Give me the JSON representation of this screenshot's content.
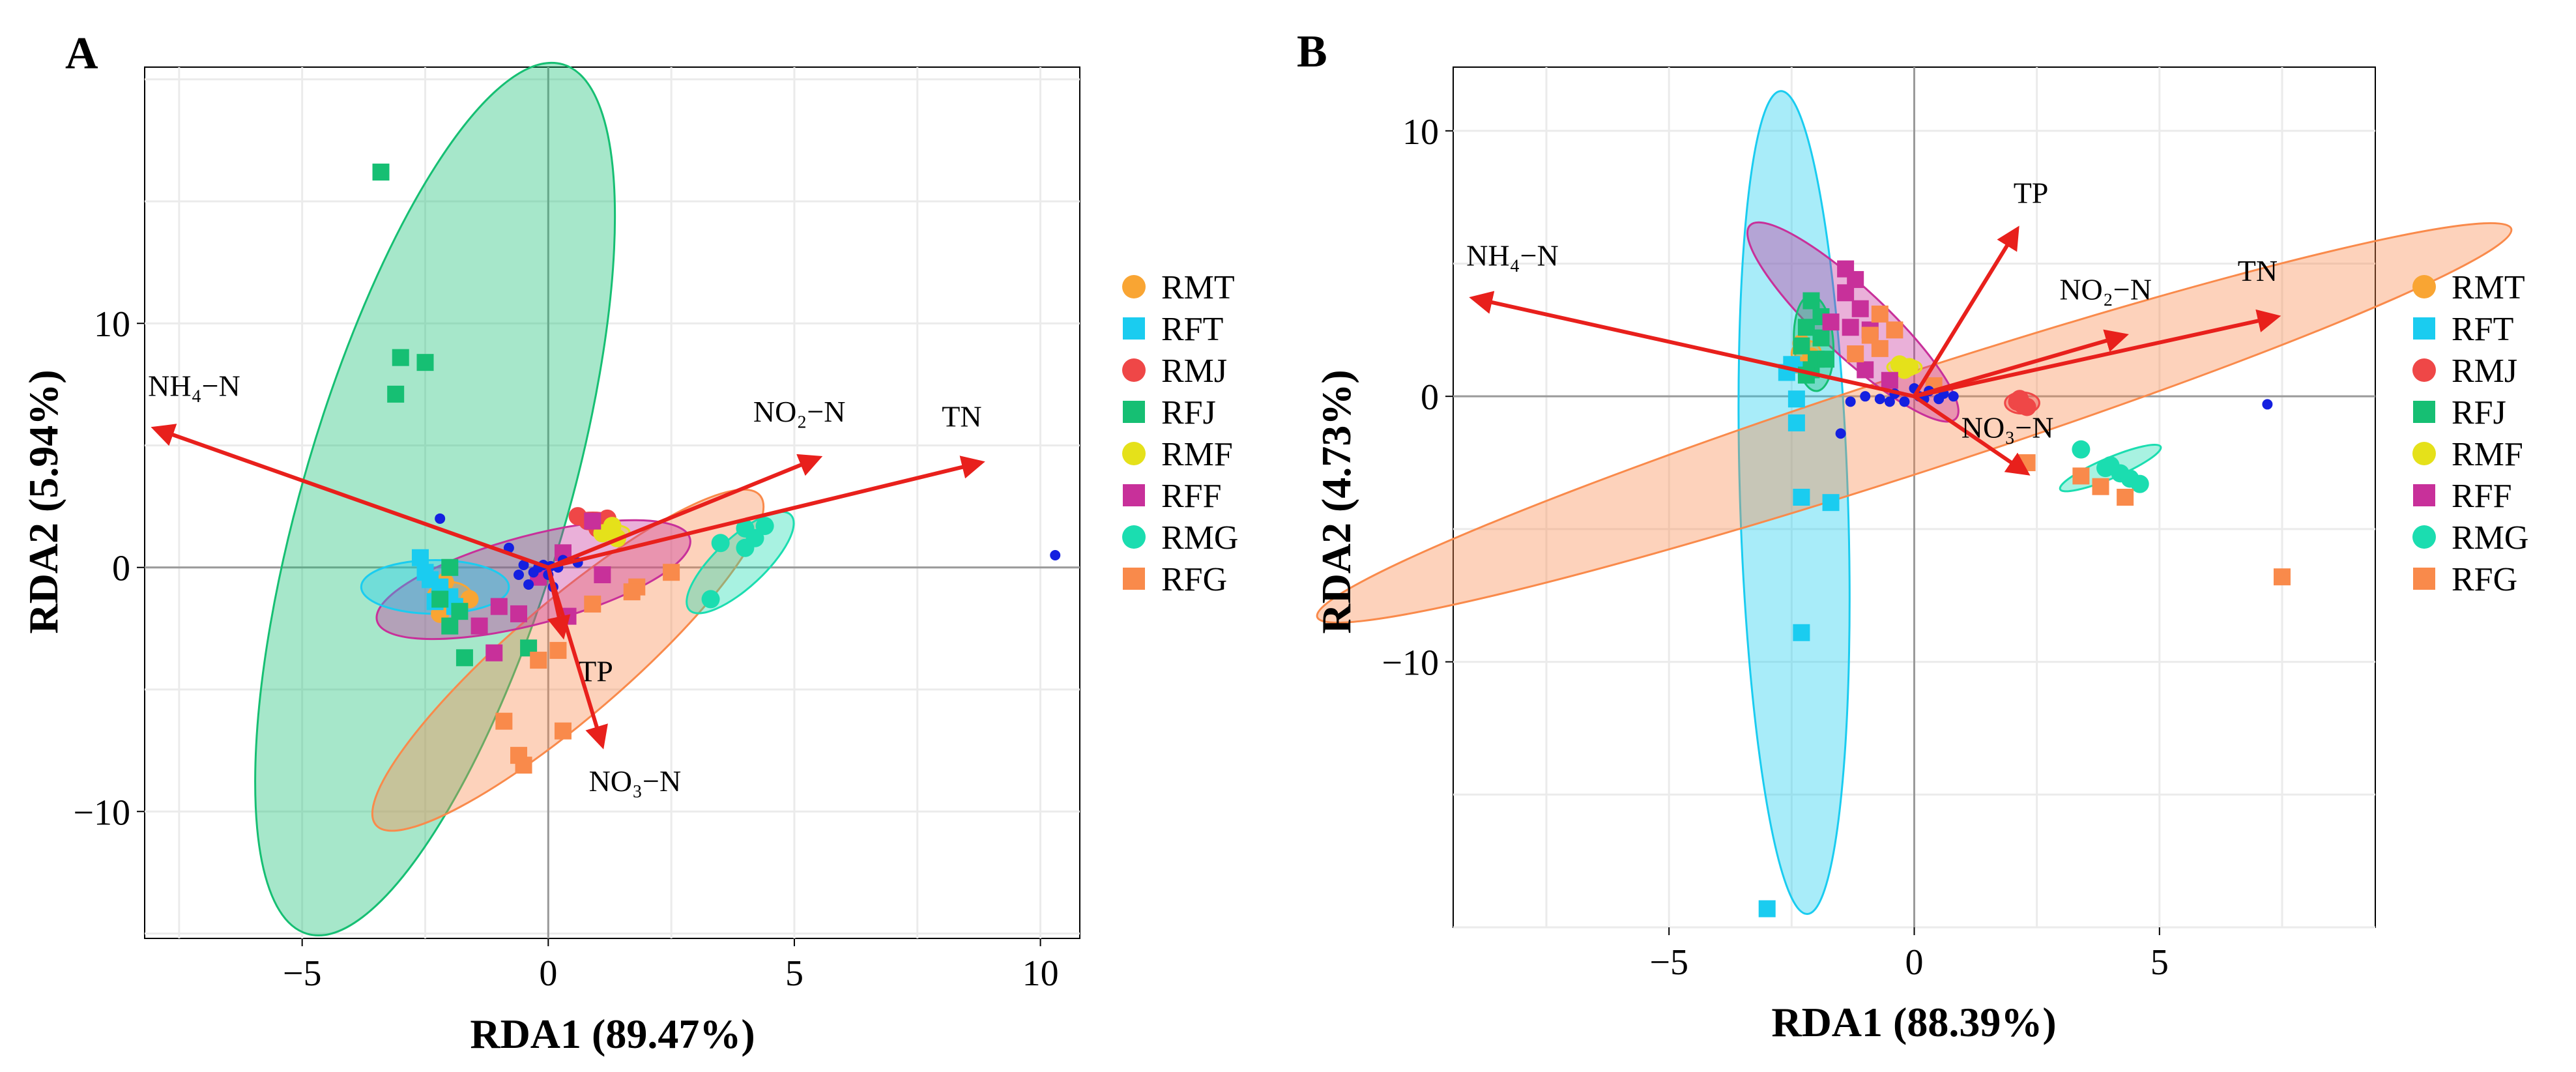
{
  "chart_data": [
    {
      "type": "scatter",
      "panel_label": "A",
      "xlabel": "RDA1 (89.47%)",
      "ylabel": "RDA2 (5.94%)",
      "xlim": [
        -8.2,
        10.8
      ],
      "ylim": [
        -15.2,
        20.5
      ],
      "xticks": [
        -5,
        0,
        5,
        10
      ],
      "yticks": [
        -10,
        0,
        10
      ],
      "xtick_labels": [
        "−5",
        "0",
        "5",
        "10"
      ],
      "ytick_labels": [
        "−10",
        "0",
        "10"
      ],
      "grid": true,
      "legend_position": "right",
      "groups": [
        {
          "name": "RMT",
          "color": "#F9A533",
          "shape": "circle",
          "points": [
            [
              -2.1,
              -0.6
            ],
            [
              -1.6,
              -1.3
            ],
            [
              -2.2,
              -1.9
            ]
          ]
        },
        {
          "name": "RFT",
          "color": "#1ACCF0",
          "shape": "square",
          "points": [
            [
              -2.6,
              0.4
            ],
            [
              -2.4,
              -0.5
            ],
            [
              -2.2,
              -0.8
            ],
            [
              -2.0,
              -1.2
            ],
            [
              -2.3,
              -1.4
            ],
            [
              -1.9,
              -1.6
            ],
            [
              -2.5,
              -0.2
            ]
          ]
        },
        {
          "name": "RMJ",
          "color": "#EF4747",
          "shape": "circle",
          "points": [
            [
              0.6,
              2.1
            ],
            [
              0.8,
              1.9
            ],
            [
              1.0,
              1.6
            ],
            [
              1.2,
              2.0
            ]
          ]
        },
        {
          "name": "RFJ",
          "color": "#16BF73",
          "shape": "square",
          "points": [
            [
              -3.4,
              16.2
            ],
            [
              -3.0,
              8.6
            ],
            [
              -2.5,
              8.4
            ],
            [
              -3.1,
              7.1
            ],
            [
              -2.0,
              0.0
            ],
            [
              -2.2,
              -1.3
            ],
            [
              -1.8,
              -1.8
            ],
            [
              -2.0,
              -2.4
            ],
            [
              -1.7,
              -3.7
            ],
            [
              -0.4,
              -3.3
            ]
          ]
        },
        {
          "name": "RMF",
          "color": "#E5E11A",
          "shape": "circle",
          "points": [
            [
              1.1,
              1.4
            ],
            [
              1.3,
              1.7
            ],
            [
              1.4,
              1.2
            ]
          ]
        },
        {
          "name": "RFF",
          "color": "#C8309A",
          "shape": "square",
          "points": [
            [
              0.9,
              1.9
            ],
            [
              0.3,
              0.6
            ],
            [
              -0.2,
              -0.4
            ],
            [
              -1.0,
              -1.6
            ],
            [
              -1.4,
              -2.4
            ],
            [
              -0.6,
              -1.9
            ],
            [
              -1.1,
              -3.5
            ],
            [
              1.1,
              -0.3
            ],
            [
              0.4,
              -2.0
            ]
          ]
        },
        {
          "name": "RMG",
          "color": "#1BDDB0",
          "shape": "circle",
          "points": [
            [
              3.5,
              1.0
            ],
            [
              4.0,
              1.6
            ],
            [
              4.2,
              1.2
            ],
            [
              4.4,
              1.7
            ],
            [
              3.3,
              -1.3
            ],
            [
              4.0,
              0.8
            ]
          ]
        },
        {
          "name": "RFG",
          "color": "#F98A4B",
          "shape": "square",
          "points": [
            [
              2.5,
              -0.2
            ],
            [
              1.8,
              -0.8
            ],
            [
              1.7,
              -1.0
            ],
            [
              0.9,
              -1.5
            ],
            [
              0.2,
              -3.4
            ],
            [
              -0.2,
              -3.8
            ],
            [
              0.3,
              -6.7
            ],
            [
              -0.9,
              -6.3
            ],
            [
              -0.6,
              -7.7
            ],
            [
              -0.5,
              -8.1
            ]
          ]
        }
      ],
      "species_points": [
        [
          10.3,
          0.5
        ],
        [
          -2.2,
          2.0
        ],
        [
          -0.8,
          0.8
        ],
        [
          -0.5,
          0.1
        ],
        [
          -0.3,
          -0.2
        ],
        [
          -0.1,
          0.1
        ],
        [
          0.0,
          -0.3
        ],
        [
          0.2,
          0.0
        ],
        [
          0.1,
          -0.8
        ],
        [
          -0.4,
          -0.7
        ],
        [
          0.6,
          0.2
        ],
        [
          -0.6,
          -0.3
        ],
        [
          0.3,
          0.3
        ],
        [
          -0.2,
          0.0
        ],
        [
          0.05,
          0.05
        ]
      ],
      "species_color": "#1420E0",
      "ellipses": [
        {
          "group": "RFJ",
          "cx": -2.3,
          "cy": 2.8,
          "rx": 18.0,
          "ry": 2.7,
          "angle_deg": 81.7
        },
        {
          "group": "RFG",
          "cx": 0.4,
          "cy": -3.8,
          "rx": 7.8,
          "ry": 1.3,
          "angle_deg": 60
        },
        {
          "group": "RFF",
          "cx": -0.3,
          "cy": -0.5,
          "rx": 3.6,
          "ry": 1.4,
          "angle_deg": 28
        },
        {
          "group": "RFT",
          "cx": -2.3,
          "cy": -0.8,
          "rx": 1.5,
          "ry": 1.1,
          "angle_deg": 0
        },
        {
          "group": "RMG",
          "cx": 3.9,
          "cy": 0.2,
          "rx": 2.2,
          "ry": 0.55,
          "angle_deg": 62
        },
        {
          "group": "RMJ",
          "cx": 0.9,
          "cy": 2.0,
          "rx": 0.45,
          "ry": 0.25,
          "angle_deg": 0
        },
        {
          "group": "RMF",
          "cx": 1.3,
          "cy": 1.45,
          "rx": 0.35,
          "ry": 0.3,
          "angle_deg": 0
        },
        {
          "group": "RMT",
          "cx": -2.0,
          "cy": -1.2,
          "rx": 0.45,
          "ry": 0.6,
          "angle_deg": 0
        }
      ],
      "arrows": [
        {
          "label": "NH₄−N",
          "x": -8.0,
          "y": 5.7
        },
        {
          "label": "NO₂−N",
          "x": 5.5,
          "y": 4.5
        },
        {
          "label": "TN",
          "x": 8.8,
          "y": 4.3
        },
        {
          "label": "TP",
          "x": 0.3,
          "y": -2.8
        },
        {
          "label": "NO₃−N",
          "x": 1.1,
          "y": -7.3
        }
      ]
    },
    {
      "type": "scatter",
      "panel_label": "B",
      "xlabel": "RDA1 (88.39%)",
      "ylabel": "RDA2 (4.73%)",
      "xlim": [
        -9.4,
        9.4
      ],
      "ylim": [
        -20.0,
        12.4
      ],
      "xticks": [
        -5,
        0,
        5
      ],
      "yticks": [
        -10,
        0,
        10
      ],
      "xtick_labels": [
        "−5",
        "0",
        "5"
      ],
      "ytick_labels": [
        "−10",
        "0",
        "10"
      ],
      "grid": true,
      "legend_position": "right",
      "groups": [
        {
          "name": "RMT",
          "color": "#F9A533",
          "shape": "circle",
          "points": [
            [
              -2.3,
              2.0
            ],
            [
              -2.1,
              1.5
            ],
            [
              -2.4,
              1.2
            ]
          ]
        },
        {
          "name": "RFT",
          "color": "#1ACCF0",
          "shape": "square",
          "points": [
            [
              -2.5,
              1.2
            ],
            [
              -2.2,
              1.0
            ],
            [
              -2.4,
              -0.1
            ],
            [
              -2.4,
              -1.0
            ],
            [
              -2.3,
              -3.8
            ],
            [
              -1.7,
              -4.0
            ],
            [
              -2.3,
              -8.9
            ],
            [
              -3.0,
              -19.3
            ],
            [
              -2.6,
              0.9
            ]
          ]
        },
        {
          "name": "RMJ",
          "color": "#EF4747",
          "shape": "circle",
          "points": [
            [
              2.1,
              -0.2
            ],
            [
              2.2,
              -0.3
            ],
            [
              2.3,
              -0.4
            ],
            [
              2.15,
              -0.1
            ]
          ]
        },
        {
          "name": "RFJ",
          "color": "#16BF73",
          "shape": "square",
          "points": [
            [
              -2.1,
              3.6
            ],
            [
              -1.9,
              3.0
            ],
            [
              -2.2,
              2.6
            ],
            [
              -1.9,
              2.2
            ],
            [
              -2.3,
              1.9
            ],
            [
              -2.0,
              1.4
            ],
            [
              -2.1,
              1.0
            ],
            [
              -1.8,
              1.4
            ],
            [
              -2.2,
              0.8
            ]
          ]
        },
        {
          "name": "RMF",
          "color": "#E5E11A",
          "shape": "circle",
          "points": [
            [
              -0.3,
              1.2
            ],
            [
              -0.2,
              1.0
            ],
            [
              -0.1,
              1.1
            ]
          ]
        },
        {
          "name": "RFF",
          "color": "#C8309A",
          "shape": "square",
          "points": [
            [
              -1.4,
              4.8
            ],
            [
              -1.2,
              4.4
            ],
            [
              -1.4,
              3.9
            ],
            [
              -1.1,
              3.3
            ],
            [
              -1.7,
              2.8
            ],
            [
              -1.3,
              2.6
            ],
            [
              -0.9,
              2.5
            ],
            [
              -0.5,
              0.6
            ],
            [
              -1.0,
              1.0
            ]
          ]
        },
        {
          "name": "RMG",
          "color": "#1BDDB0",
          "shape": "circle",
          "points": [
            [
              3.4,
              -2.0
            ],
            [
              3.9,
              -2.7
            ],
            [
              4.2,
              -2.9
            ],
            [
              4.4,
              -3.1
            ],
            [
              4.6,
              -3.3
            ],
            [
              4.0,
              -2.6
            ]
          ]
        },
        {
          "name": "RFG",
          "color": "#F98A4B",
          "shape": "square",
          "points": [
            [
              -0.7,
              3.1
            ],
            [
              -0.4,
              2.5
            ],
            [
              -0.9,
              2.3
            ],
            [
              -0.7,
              1.8
            ],
            [
              -1.2,
              1.6
            ],
            [
              0.4,
              0.4
            ],
            [
              2.3,
              -2.5
            ],
            [
              3.4,
              -3.0
            ],
            [
              3.8,
              -3.4
            ],
            [
              4.3,
              -3.8
            ],
            [
              7.5,
              -6.8
            ]
          ]
        }
      ],
      "species_points": [
        [
          7.2,
          -0.3
        ],
        [
          -1.5,
          -1.4
        ],
        [
          -1.0,
          0.0
        ],
        [
          -0.7,
          -0.1
        ],
        [
          -0.4,
          0.1
        ],
        [
          -0.2,
          -0.2
        ],
        [
          0.1,
          0.0
        ],
        [
          0.3,
          0.2
        ],
        [
          0.5,
          -0.1
        ],
        [
          0.8,
          0.0
        ],
        [
          -0.5,
          -0.2
        ],
        [
          0.0,
          0.3
        ],
        [
          -1.3,
          -0.2
        ],
        [
          0.2,
          -0.1
        ],
        [
          0.6,
          0.1
        ]
      ],
      "species_color": "#1420E0",
      "ellipses": [
        {
          "group": "RFT",
          "cx": -2.45,
          "cy": -4.0,
          "rx": 15.5,
          "ry": 1.1,
          "angle_deg": -89
        },
        {
          "group": "RFG",
          "cx": 0.0,
          "cy": -1.0,
          "rx": 14.2,
          "ry": 1.45,
          "angle_deg": 31
        },
        {
          "group": "RFF",
          "cx": -1.25,
          "cy": 2.8,
          "rx": 4.2,
          "ry": 0.75,
          "angle_deg": -60
        },
        {
          "group": "RFJ",
          "cx": -2.05,
          "cy": 2.0,
          "rx": 1.8,
          "ry": 0.4,
          "angle_deg": -88
        },
        {
          "group": "RMG",
          "cx": 4.0,
          "cy": -2.7,
          "rx": 1.3,
          "ry": 0.28,
          "angle_deg": 38
        },
        {
          "group": "RMJ",
          "cx": 2.2,
          "cy": -0.25,
          "rx": 0.35,
          "ry": 0.4,
          "angle_deg": 0
        },
        {
          "group": "RMF",
          "cx": -0.2,
          "cy": 1.1,
          "rx": 0.35,
          "ry": 0.3,
          "angle_deg": 0
        },
        {
          "group": "RMT",
          "cx": -2.2,
          "cy": 1.6,
          "rx": 0.3,
          "ry": 0.5,
          "angle_deg": 0
        }
      ],
      "arrows": [
        {
          "label": "NH₄−N",
          "x": -9.0,
          "y": 3.7
        },
        {
          "label": "TP",
          "x": 2.1,
          "y": 6.3
        },
        {
          "label": "NO₂−N",
          "x": 4.3,
          "y": 2.3
        },
        {
          "label": "TN",
          "x": 7.4,
          "y": 3.0
        },
        {
          "label": "NO₃−N",
          "x": 2.3,
          "y": -2.9
        }
      ]
    }
  ]
}
